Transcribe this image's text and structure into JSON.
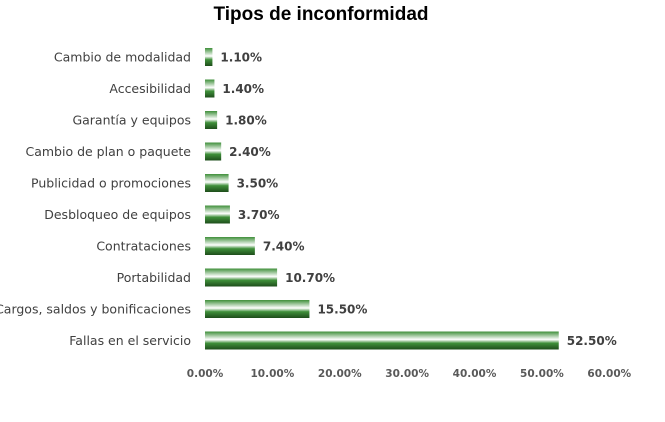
{
  "chart_data": {
    "type": "bar",
    "orientation": "horizontal",
    "title": "Tipos de inconformidad",
    "xlabel": "",
    "ylabel": "",
    "categories": [
      "Cambio de modalidad",
      "Accesibilidad",
      "Garantía y equipos",
      "Cambio de plan o paquete",
      "Publicidad o promociones",
      "Desbloqueo de equipos",
      "Contrataciones",
      "Portabilidad",
      "Cargos, saldos y bonificaciones",
      "Fallas en el servicio"
    ],
    "values": [
      1.1,
      1.4,
      1.8,
      2.4,
      3.5,
      3.7,
      7.4,
      10.7,
      15.5,
      52.5
    ],
    "value_labels": [
      "1.10%",
      "1.40%",
      "1.80%",
      "2.40%",
      "3.50%",
      "3.70%",
      "7.40%",
      "10.70%",
      "15.50%",
      "52.50%"
    ],
    "xlim": [
      0,
      60
    ],
    "xticks": [
      0,
      10,
      20,
      30,
      40,
      50,
      60
    ],
    "xtick_labels": [
      "0.00%",
      "10.00%",
      "20.00%",
      "30.00%",
      "40.00%",
      "50.00%",
      "60.00%"
    ],
    "grid": false,
    "legend": "none",
    "bar_color": "#3f8f3a",
    "bar_highlight": "#ffffff",
    "bar_dark": "#1e4d1b"
  }
}
